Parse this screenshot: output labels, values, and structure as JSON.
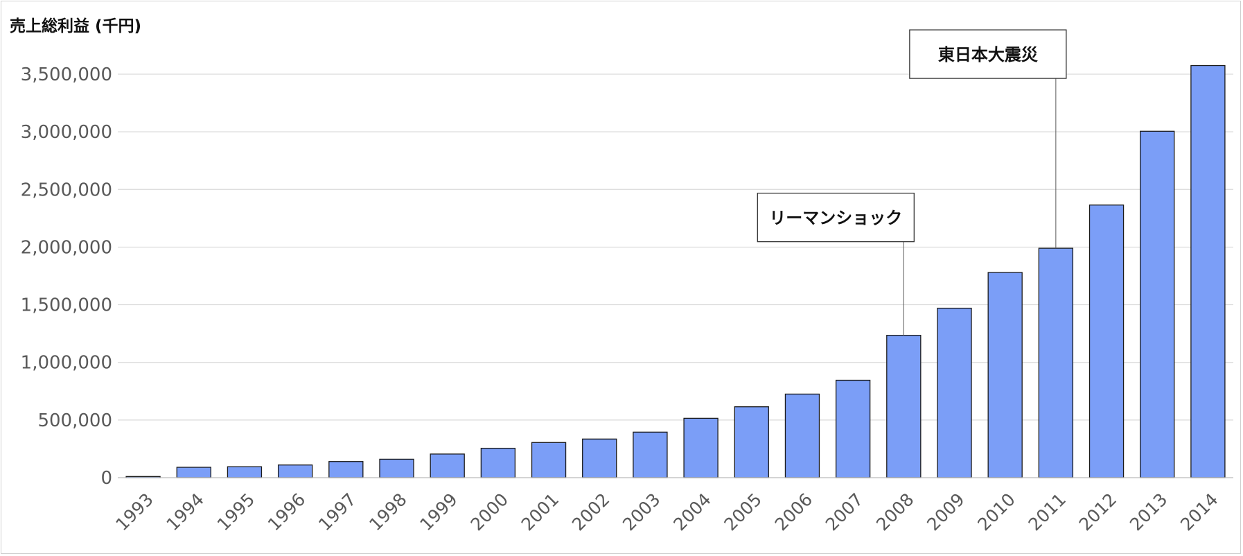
{
  "chart_data": {
    "type": "bar",
    "title": "売上総利益 (千円)",
    "xlabel": "",
    "ylabel": "",
    "categories": [
      "1993",
      "1994",
      "1995",
      "1996",
      "1997",
      "1998",
      "1999",
      "2000",
      "2001",
      "2002",
      "2003",
      "2004",
      "2005",
      "2006",
      "2007",
      "2008",
      "2009",
      "2010",
      "2011",
      "2012",
      "2013",
      "2014"
    ],
    "values": [
      10000,
      90000,
      95000,
      110000,
      140000,
      160000,
      205000,
      255000,
      305000,
      335000,
      395000,
      515000,
      615000,
      725000,
      845000,
      1235000,
      1470000,
      1780000,
      1990000,
      2365000,
      3005000,
      3575000
    ],
    "ylim": [
      0,
      3500000
    ],
    "yticks": [
      0,
      500000,
      1000000,
      1500000,
      2000000,
      2500000,
      3000000,
      3500000
    ],
    "ytick_labels": [
      "0",
      "500,000",
      "1,000,000",
      "1,500,000",
      "2,000,000",
      "2,500,000",
      "3,000,000",
      "3,500,000"
    ],
    "grid": true,
    "legend": "none",
    "bar_color": "#7b9ef7",
    "annotations": [
      {
        "label": "リーマンショック",
        "category": "2008"
      },
      {
        "label": "東日本大震災",
        "category": "2011"
      }
    ]
  }
}
